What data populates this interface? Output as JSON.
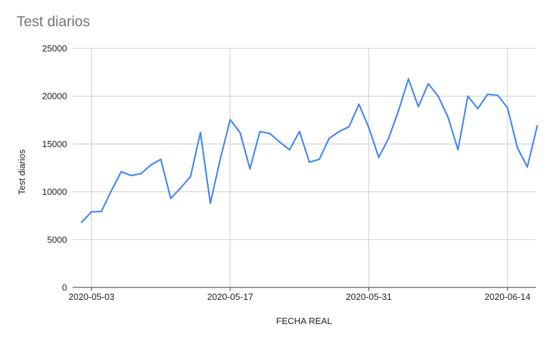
{
  "chart_data": {
    "type": "line",
    "title": "Test diarios",
    "xlabel": "FECHA REAL",
    "ylabel": "Test diarios",
    "ylim": [
      0,
      25000
    ],
    "yticks": [
      0,
      5000,
      10000,
      15000,
      20000,
      25000
    ],
    "xtick_labels": [
      "2020-05-03",
      "2020-05-17",
      "2020-05-31",
      "2020-06-14"
    ],
    "x_start": "2020-05-02",
    "grid": true,
    "legend": "none",
    "series": [
      {
        "color": "#4285f4",
        "x": [
          "2020-05-02",
          "2020-05-03",
          "2020-05-04",
          "2020-05-05",
          "2020-05-06",
          "2020-05-07",
          "2020-05-08",
          "2020-05-09",
          "2020-05-10",
          "2020-05-11",
          "2020-05-12",
          "2020-05-13",
          "2020-05-14",
          "2020-05-15",
          "2020-05-16",
          "2020-05-17",
          "2020-05-18",
          "2020-05-19",
          "2020-05-20",
          "2020-05-21",
          "2020-05-22",
          "2020-05-23",
          "2020-05-24",
          "2020-05-25",
          "2020-05-26",
          "2020-05-27",
          "2020-05-28",
          "2020-05-29",
          "2020-05-30",
          "2020-05-31",
          "2020-06-01",
          "2020-06-02",
          "2020-06-03",
          "2020-06-04",
          "2020-06-05",
          "2020-06-06",
          "2020-06-07",
          "2020-06-08",
          "2020-06-09",
          "2020-06-10",
          "2020-06-11",
          "2020-06-12",
          "2020-06-13",
          "2020-06-14",
          "2020-06-15",
          "2020-06-16",
          "2020-06-17"
        ],
        "values": [
          6800,
          7900,
          7950,
          10100,
          12100,
          11700,
          11900,
          12800,
          13400,
          9300,
          10400,
          11600,
          16200,
          8800,
          13400,
          17550,
          16200,
          12400,
          16300,
          16100,
          15200,
          14400,
          16300,
          13100,
          13400,
          15600,
          16300,
          16800,
          19150,
          16700,
          13600,
          15600,
          18500,
          21800,
          18900,
          21300,
          20000,
          17800,
          14400,
          20000,
          18700,
          20200,
          20100,
          18800,
          14600,
          12600,
          16900
        ]
      }
    ]
  }
}
